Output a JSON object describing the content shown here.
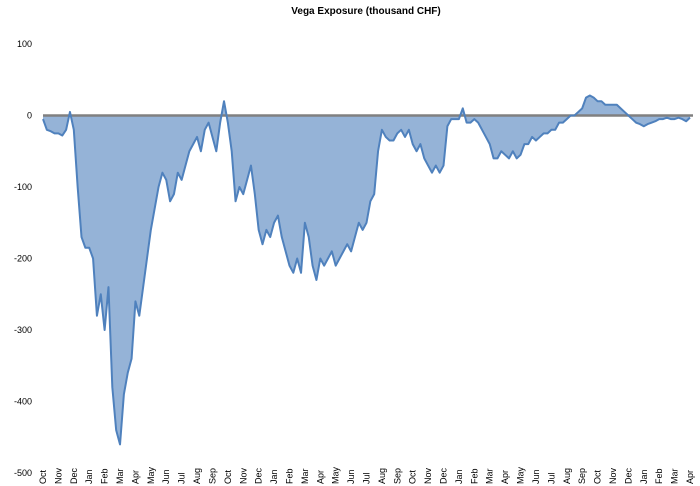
{
  "chart_data": {
    "type": "area",
    "title": "Vega Exposure (thousand CHF)",
    "categories": [
      "Oct",
      null,
      null,
      null,
      "Nov",
      null,
      null,
      null,
      "Dec",
      null,
      null,
      null,
      "Jan",
      null,
      null,
      null,
      "Feb",
      null,
      null,
      null,
      "Mar",
      null,
      null,
      null,
      "Apr",
      null,
      null,
      null,
      "May",
      null,
      null,
      null,
      "Jun",
      null,
      null,
      null,
      "Jul",
      null,
      null,
      null,
      "Aug",
      null,
      null,
      null,
      "Sep",
      null,
      null,
      null,
      "Oct",
      null,
      null,
      null,
      "Nov",
      null,
      null,
      null,
      "Dec",
      null,
      null,
      null,
      "Jan",
      null,
      null,
      null,
      "Feb",
      null,
      null,
      null,
      "Mar",
      null,
      null,
      null,
      "Apr",
      null,
      null,
      null,
      "May",
      null,
      null,
      null,
      "Jun",
      null,
      null,
      null,
      "Jul",
      null,
      null,
      null,
      "Aug",
      null,
      null,
      null,
      "Sep",
      null,
      null,
      null,
      "Oct",
      null,
      null,
      null,
      "Nov",
      null,
      null,
      null,
      "Dec",
      null,
      null,
      null,
      "Jan",
      null,
      null,
      null,
      "Feb",
      null,
      null,
      null,
      "Mar",
      null,
      null,
      null,
      "Apr",
      null,
      null,
      null,
      "May",
      null,
      null,
      null,
      "Jun",
      null,
      null,
      null,
      "Jul",
      null,
      null,
      null,
      "Aug",
      null,
      null,
      null,
      "Sep",
      null,
      null,
      null,
      "Oct",
      null,
      null,
      null,
      "Nov",
      null,
      null,
      null,
      "Dec",
      null,
      null,
      null,
      "Jan",
      null,
      null,
      null,
      "Feb",
      null,
      null,
      null,
      "Mar",
      null,
      null,
      null,
      "Apr"
    ],
    "values": [
      -5,
      -20,
      -22,
      -25,
      -25,
      -28,
      -20,
      5,
      -20,
      -100,
      -170,
      -185,
      -185,
      -200,
      -280,
      -250,
      -300,
      -240,
      -380,
      -440,
      -460,
      -390,
      -360,
      -340,
      -260,
      -280,
      -240,
      -200,
      -160,
      -130,
      -100,
      -80,
      -90,
      -120,
      -110,
      -80,
      -90,
      -70,
      -50,
      -40,
      -30,
      -50,
      -20,
      -10,
      -30,
      -50,
      -10,
      20,
      -10,
      -50,
      -120,
      -100,
      -110,
      -90,
      -70,
      -110,
      -160,
      -180,
      -160,
      -170,
      -150,
      -140,
      -170,
      -190,
      -210,
      -220,
      -200,
      -220,
      -150,
      -170,
      -210,
      -230,
      -200,
      -210,
      -200,
      -190,
      -210,
      -200,
      -190,
      -180,
      -190,
      -170,
      -150,
      -160,
      -150,
      -120,
      -110,
      -50,
      -20,
      -30,
      -35,
      -35,
      -25,
      -20,
      -30,
      -20,
      -40,
      -50,
      -40,
      -60,
      -70,
      -80,
      -70,
      -80,
      -70,
      -15,
      -5,
      -5,
      -5,
      10,
      -10,
      -10,
      -5,
      -10,
      -20,
      -30,
      -40,
      -60,
      -60,
      -50,
      -55,
      -60,
      -50,
      -60,
      -55,
      -40,
      -40,
      -30,
      -35,
      -30,
      -25,
      -25,
      -20,
      -20,
      -10,
      -10,
      -5,
      0,
      0,
      5,
      10,
      25,
      28,
      25,
      20,
      20,
      15,
      15,
      15,
      15,
      10,
      5,
      0,
      -5,
      -10,
      -12,
      -15,
      -12,
      -10,
      -8,
      -5,
      -5,
      -3,
      -5,
      -5,
      -3,
      -5,
      -8,
      -3
    ],
    "color": "#4f81bd",
    "fill": "#95b3d7",
    "ylim": [
      -500,
      100
    ],
    "yticks": [
      100,
      0,
      -100,
      -200,
      -300,
      -400,
      -500
    ]
  }
}
